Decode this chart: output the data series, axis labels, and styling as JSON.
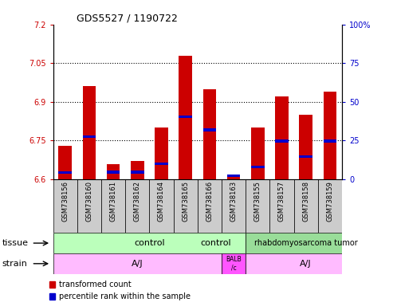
{
  "title": "GDS5527 / 1190722",
  "samples": [
    "GSM738156",
    "GSM738160",
    "GSM738161",
    "GSM738162",
    "GSM738164",
    "GSM738165",
    "GSM738166",
    "GSM738163",
    "GSM738155",
    "GSM738157",
    "GSM738158",
    "GSM738159"
  ],
  "red_values": [
    6.73,
    6.96,
    6.66,
    6.67,
    6.8,
    7.08,
    6.95,
    6.61,
    6.8,
    6.92,
    6.85,
    6.94
  ],
  "blue_positions": [
    6.627,
    6.765,
    6.628,
    6.628,
    6.66,
    6.843,
    6.792,
    6.614,
    6.648,
    6.748,
    6.688,
    6.748
  ],
  "baseline": 6.6,
  "ylim_left": [
    6.6,
    7.2
  ],
  "ylim_right": [
    0,
    100
  ],
  "yticks_left": [
    6.6,
    6.75,
    6.9,
    7.05,
    7.2
  ],
  "yticks_right": [
    0,
    25,
    50,
    75,
    100
  ],
  "ytick_labels_left": [
    "6.6",
    "6.75",
    "6.9",
    "7.05",
    "7.2"
  ],
  "ytick_labels_right": [
    "0",
    "25",
    "50",
    "75",
    "100%"
  ],
  "hlines": [
    6.75,
    6.9,
    7.05
  ],
  "bar_color_red": "#cc0000",
  "bar_color_blue": "#0000cc",
  "bar_width": 0.55,
  "tissue_row_color_control": "#bbffbb",
  "tissue_row_color_tumor": "#99dd99",
  "strain_row_color": "#ffbbff",
  "strain_row_color_balb": "#ff55ff",
  "title_color": "black",
  "left_tick_color": "#cc0000",
  "right_tick_color": "#0000cc",
  "xtick_bg_color": "#cccccc"
}
